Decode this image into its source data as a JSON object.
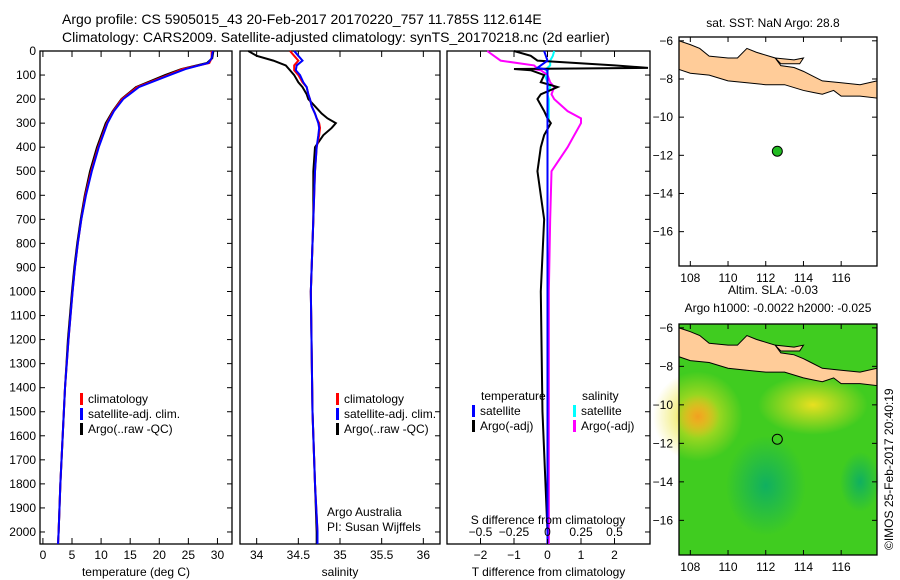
{
  "header": {
    "line1": "Argo profile: CS 5905015_43 20-Feb-2017 20170220_757 11.785S 112.614E",
    "line2": "Climatology: CARS2009. Satellite-adjusted climatology: synTS_20170218.nc (2d earlier)"
  },
  "colors": {
    "climatology": "#ff0000",
    "satellite": "#0000ff",
    "argo": "#000000",
    "sal_sat": "#00ffff",
    "sal_argo": "#ff00ff",
    "land": "#ffcc99"
  },
  "chart_data": [
    {
      "type": "line",
      "name": "temperature",
      "xlabel": "temperature (deg C)",
      "xlim": [
        -0.5,
        32.5
      ],
      "ylim": [
        2050,
        0
      ],
      "xticks": [
        0,
        5,
        10,
        15,
        20,
        25,
        30
      ],
      "yticks": [
        0,
        100,
        200,
        300,
        400,
        500,
        600,
        700,
        800,
        900,
        1000,
        1100,
        1200,
        1300,
        1400,
        1500,
        1600,
        1700,
        1800,
        1900,
        2000
      ],
      "legend": [
        "climatology",
        "satellite-adj. clim.",
        "Argo(..raw -QC)"
      ],
      "depth": [
        0,
        30,
        50,
        75,
        100,
        150,
        200,
        250,
        300,
        400,
        500,
        600,
        700,
        800,
        900,
        1000,
        1200,
        1400,
        1600,
        1800,
        2000,
        2050
      ],
      "series": [
        {
          "name": "climatology",
          "values": [
            29,
            29,
            28.6,
            24,
            21.5,
            16.2,
            13.6,
            12.1,
            11,
            9.5,
            8.3,
            7.3,
            6.6,
            6,
            5.5,
            5.1,
            4.4,
            3.8,
            3.4,
            3,
            2.7,
            2.6
          ]
        },
        {
          "name": "satellite-adj. clim.",
          "values": [
            29.2,
            29,
            28.4,
            24.5,
            21.8,
            16.5,
            13.8,
            12.2,
            11.1,
            9.6,
            8.4,
            7.4,
            6.6,
            6,
            5.5,
            5.1,
            4.4,
            3.8,
            3.4,
            3,
            2.7,
            2.6
          ]
        },
        {
          "name": "Argo(..raw -QC)",
          "values": [
            29.3,
            29.1,
            28.2,
            23.8,
            21,
            16,
            13.5,
            12,
            10.8,
            9.3,
            8.1,
            7.2,
            6.5,
            5.9,
            5.4,
            5,
            4.3,
            3.8,
            3.4,
            3,
            2.7,
            2.6
          ]
        }
      ]
    },
    {
      "type": "line",
      "name": "salinity",
      "xlabel": "salinity",
      "xlim": [
        33.8,
        36.2
      ],
      "ylim": [
        2050,
        0
      ],
      "xticks": [
        34,
        34.5,
        35,
        35.5,
        36
      ],
      "legend": [
        "climatology",
        "satellite-adj. clim.",
        "Argo(..raw -QC)"
      ],
      "annotations": [
        "Argo Australia",
        "PI: Susan Wijffels"
      ],
      "depth": [
        0,
        20,
        40,
        60,
        80,
        100,
        130,
        150,
        180,
        200,
        230,
        260,
        280,
        300,
        320,
        350,
        400,
        500,
        700,
        1000,
        1500,
        1800,
        2000,
        2050
      ],
      "series": [
        {
          "name": "climatology",
          "values": [
            34.4,
            34.45,
            34.5,
            34.45,
            34.45,
            34.5,
            34.55,
            34.6,
            34.62,
            34.64,
            34.66,
            34.7,
            34.72,
            34.75,
            34.76,
            34.75,
            34.72,
            34.7,
            34.68,
            34.65,
            34.67,
            34.7,
            34.73,
            34.73
          ]
        },
        {
          "name": "satellite-adj. clim.",
          "values": [
            34.45,
            34.5,
            34.55,
            34.48,
            34.47,
            34.52,
            34.56,
            34.6,
            34.62,
            34.64,
            34.66,
            34.7,
            34.72,
            34.74,
            34.75,
            34.74,
            34.72,
            34.7,
            34.68,
            34.65,
            34.67,
            34.7,
            34.73,
            34.73
          ]
        },
        {
          "name": "Argo(..raw -QC)",
          "values": [
            33.9,
            34.0,
            34.2,
            34.35,
            34.4,
            34.45,
            34.5,
            34.55,
            34.6,
            34.62,
            34.7,
            34.78,
            34.85,
            34.95,
            34.9,
            34.8,
            34.7,
            34.68,
            34.68,
            34.65,
            34.67,
            34.7,
            34.72,
            34.72
          ]
        }
      ]
    },
    {
      "type": "line",
      "name": "difference",
      "xlabel": "T difference from climatology",
      "x2label": "S difference from climatology",
      "xlim": [
        -3,
        3.06
      ],
      "xticks": [
        -2,
        -1,
        0,
        1,
        2
      ],
      "x2ticks": [
        -0.5,
        -0.25,
        0,
        0.25,
        0.5
      ],
      "legend": {
        "temperature": "temperature",
        "salinity": "salinity",
        "satellite": "satellite",
        "argo": "Argo(-adj)"
      },
      "depth": [
        0,
        20,
        40,
        60,
        70,
        75,
        80,
        100,
        130,
        150,
        180,
        200,
        250,
        280,
        300,
        350,
        400,
        500,
        700,
        1000,
        1500,
        2000,
        2050
      ],
      "series": [
        {
          "name": "T satellite",
          "values": [
            -0.1,
            -0.05,
            0,
            -0.2,
            -0.3,
            -0.1,
            0,
            0,
            0,
            0,
            0,
            0,
            0,
            0,
            0,
            0,
            0,
            0,
            0,
            0,
            0,
            0,
            0
          ]
        },
        {
          "name": "T Argo(-adj)",
          "values": [
            -1,
            -0.5,
            -0.3,
            2.0,
            3.0,
            -1.0,
            -0.5,
            -0.1,
            -0.2,
            0.3,
            -0.2,
            -0.3,
            -0.1,
            0,
            0.1,
            -0.1,
            -0.2,
            -0.3,
            -0.1,
            -0.2,
            -0.15,
            0,
            0
          ]
        },
        {
          "name": "S satellite",
          "values": [
            0.05,
            0.04,
            0.02,
            0.02,
            0,
            0.01,
            0,
            -0.02,
            0,
            0.02,
            0,
            0.01,
            0.01,
            0.01,
            0,
            0,
            0,
            0,
            0,
            0,
            0,
            0,
            0
          ]
        },
        {
          "name": "S Argo(-adj)",
          "values": [
            -0.45,
            -0.4,
            -0.35,
            -0.1,
            -0.08,
            -0.1,
            -0.05,
            0,
            0.02,
            0.05,
            0.03,
            0.05,
            0.15,
            0.25,
            0.25,
            0.2,
            0.15,
            0.03,
            0.02,
            0.01,
            0.01,
            0.01,
            0.01
          ]
        }
      ]
    },
    {
      "type": "map",
      "name": "sst-map",
      "title": "sat. SST: NaN Argo: 28.8",
      "xticks": [
        108,
        110,
        112,
        114,
        116
      ],
      "yticks": [
        -6,
        -8,
        -10,
        -12,
        -14,
        -16
      ],
      "lon": [
        107.4,
        117.9
      ],
      "lat": [
        -17.8,
        -5.8
      ],
      "argo_point": [
        112.614,
        -11.785
      ]
    },
    {
      "type": "map",
      "name": "sla-map",
      "title": "Altim. SLA: -0.03",
      "subtitle": "Argo h1000: -0.0022 h2000: -0.025",
      "xticks": [
        108,
        110,
        112,
        114,
        116
      ],
      "yticks": [
        -6,
        -8,
        -10,
        -12,
        -14,
        -16
      ],
      "lon": [
        107.4,
        117.9
      ],
      "lat": [
        -17.8,
        -5.8
      ],
      "argo_point": [
        112.614,
        -11.785
      ]
    }
  ],
  "footer": {
    "credit": "©IMOS 25-Feb-2017 20:40:19"
  }
}
